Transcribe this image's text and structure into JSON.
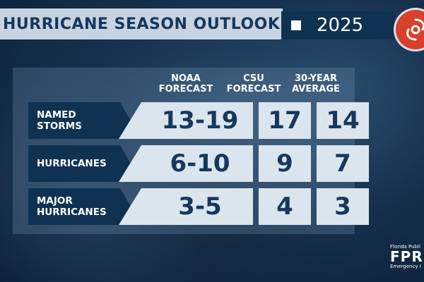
{
  "header": {
    "title": "HURRICANE SEASON OUTLOOK",
    "year": "2025"
  },
  "columns": [
    {
      "label_line1": "NOAA",
      "label_line2": "FORECAST"
    },
    {
      "label_line1": "CSU",
      "label_line2": "FORECAST"
    },
    {
      "label_line1": "30-YEAR",
      "label_line2": "AVERAGE"
    }
  ],
  "rows": [
    {
      "label_line1": "NAMED",
      "label_line2": "STORMS",
      "noaa": "13-19",
      "csu": "17",
      "avg": "14"
    },
    {
      "label_line1": "HURRICANES",
      "label_line2": "",
      "noaa": "6-10",
      "csu": "9",
      "avg": "7"
    },
    {
      "label_line1": "MAJOR",
      "label_line2": "HURRICANES",
      "noaa": "3-5",
      "csu": "4",
      "avg": "3"
    }
  ],
  "source": {
    "line1": "Florida Publi",
    "line2": "FPR",
    "line3": "Emergency I"
  },
  "colors": {
    "navy": "#0f3252",
    "cell_bg": "#dbe5ee",
    "value_text": "#17385c",
    "logo_red": "#d8402a"
  },
  "icons": {
    "logo": "hurricane-icon"
  }
}
